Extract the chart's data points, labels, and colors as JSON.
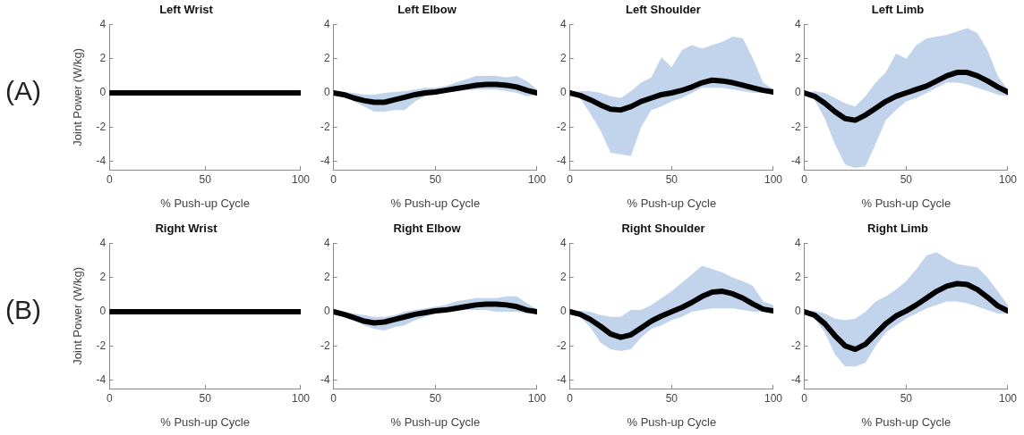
{
  "chart_data": [
    {
      "type": "line",
      "title": "Left Wrist",
      "xlabel": "% Push-up Cycle",
      "ylabel": "Joint Power (W/kg)",
      "annotations": [
        "(A)"
      ],
      "xlim": [
        0,
        100
      ],
      "xticks": [
        0,
        50,
        100
      ],
      "ylim": [
        -4.5,
        4
      ],
      "yticks": [
        -4,
        -2,
        0,
        2,
        4
      ],
      "grid": false,
      "legend": false,
      "marker": "none",
      "line_style": "solid",
      "x": [
        0,
        5,
        10,
        15,
        20,
        25,
        30,
        35,
        40,
        45,
        50,
        55,
        60,
        65,
        70,
        75,
        80,
        85,
        90,
        95,
        100
      ],
      "series": [
        {
          "color": "#000000",
          "values": [
            0,
            0,
            0,
            0,
            0,
            0,
            0,
            0,
            0,
            0,
            0,
            0,
            0,
            0,
            0,
            0,
            0,
            0,
            0,
            0,
            0
          ]
        }
      ]
    },
    {
      "type": "line",
      "title": "Left Elbow",
      "xlabel": "% Push-up Cycle",
      "xlim": [
        0,
        100
      ],
      "xticks": [
        0,
        50,
        100
      ],
      "ylim": [
        -4.5,
        4
      ],
      "yticks": [
        -4,
        -2,
        0,
        2,
        4
      ],
      "grid": false,
      "legend": false,
      "marker": "none",
      "line_style": "solid",
      "x": [
        0,
        5,
        10,
        15,
        20,
        25,
        30,
        35,
        40,
        45,
        50,
        55,
        60,
        65,
        70,
        75,
        80,
        85,
        90,
        95,
        100
      ],
      "series": [
        {
          "color": "#000000",
          "values": [
            0,
            -0.1,
            -0.3,
            -0.45,
            -0.55,
            -0.55,
            -0.4,
            -0.25,
            -0.1,
            0,
            0.05,
            0.15,
            0.25,
            0.35,
            0.45,
            0.5,
            0.5,
            0.45,
            0.35,
            0.15,
            0
          ],
          "lower": [
            0,
            -0.2,
            -0.5,
            -0.8,
            -1.1,
            -1.1,
            -1.0,
            -1.0,
            -0.5,
            -0.2,
            -0.1,
            0,
            0.1,
            0.15,
            0.2,
            0.2,
            0.2,
            0.1,
            0,
            -0.2,
            -0.1
          ],
          "upper": [
            0,
            0.05,
            0,
            -0.1,
            -0.1,
            0,
            0.05,
            0.1,
            0.2,
            0.3,
            0.3,
            0.4,
            0.6,
            0.8,
            1.0,
            1.0,
            1.0,
            0.9,
            1.0,
            0.7,
            0.2
          ]
        }
      ]
    },
    {
      "type": "line",
      "title": "Left Shoulder",
      "xlabel": "% Push-up Cycle",
      "xlim": [
        0,
        100
      ],
      "xticks": [
        0,
        50,
        100
      ],
      "ylim": [
        -4.5,
        4
      ],
      "yticks": [
        -4,
        -2,
        0,
        2,
        4
      ],
      "grid": false,
      "legend": false,
      "marker": "none",
      "line_style": "solid",
      "x": [
        0,
        5,
        10,
        15,
        20,
        25,
        30,
        35,
        40,
        45,
        50,
        55,
        60,
        65,
        70,
        75,
        80,
        85,
        90,
        95,
        100
      ],
      "series": [
        {
          "color": "#000000",
          "values": [
            0,
            -0.15,
            -0.4,
            -0.7,
            -0.95,
            -1.0,
            -0.8,
            -0.5,
            -0.3,
            -0.1,
            0,
            0.15,
            0.35,
            0.6,
            0.75,
            0.7,
            0.6,
            0.45,
            0.3,
            0.15,
            0.05
          ],
          "lower": [
            0,
            -0.3,
            -1.2,
            -2.2,
            -3.5,
            -3.6,
            -3.7,
            -2.0,
            -1.0,
            -0.8,
            -0.5,
            -0.3,
            0,
            0.3,
            0.3,
            0.3,
            0.2,
            0.1,
            0,
            0,
            0
          ],
          "upper": [
            0,
            0.1,
            0.1,
            0,
            -0.2,
            -0.3,
            0.1,
            0.6,
            0.9,
            2.1,
            1.5,
            2.5,
            2.8,
            2.6,
            2.8,
            3.0,
            3.3,
            3.2,
            2.0,
            0.6,
            0.2
          ]
        }
      ]
    },
    {
      "type": "line",
      "title": "Left Limb",
      "xlabel": "% Push-up Cycle",
      "xlim": [
        0,
        100
      ],
      "xticks": [
        0,
        50,
        100
      ],
      "ylim": [
        -4.5,
        4
      ],
      "yticks": [
        -4,
        -2,
        0,
        2,
        4
      ],
      "grid": false,
      "legend": false,
      "marker": "none",
      "line_style": "solid",
      "x": [
        0,
        5,
        10,
        15,
        20,
        25,
        30,
        35,
        40,
        45,
        50,
        55,
        60,
        65,
        70,
        75,
        80,
        85,
        90,
        95,
        100
      ],
      "series": [
        {
          "color": "#000000",
          "values": [
            0,
            -0.2,
            -0.6,
            -1.1,
            -1.5,
            -1.6,
            -1.3,
            -0.9,
            -0.5,
            -0.2,
            0,
            0.2,
            0.4,
            0.7,
            1.0,
            1.2,
            1.2,
            1.0,
            0.7,
            0.35,
            0.05
          ],
          "lower": [
            0,
            -0.4,
            -1.5,
            -3.0,
            -4.2,
            -4.4,
            -4.3,
            -3.0,
            -1.6,
            -1.0,
            -0.5,
            -0.3,
            0,
            0.3,
            0.6,
            0.6,
            0.5,
            0.3,
            0.1,
            -0.1,
            -0.2
          ],
          "upper": [
            0,
            0.1,
            0,
            -0.3,
            -0.6,
            -0.8,
            -0.2,
            0.6,
            1.2,
            2.3,
            2.0,
            2.8,
            3.2,
            3.3,
            3.4,
            3.6,
            3.8,
            3.5,
            2.5,
            1.0,
            0.2
          ]
        }
      ]
    },
    {
      "type": "line",
      "title": "Right Wrist",
      "xlabel": "% Push-up Cycle",
      "ylabel": "Joint Power (W/kg)",
      "annotations": [
        "(B)"
      ],
      "xlim": [
        0,
        100
      ],
      "xticks": [
        0,
        50,
        100
      ],
      "ylim": [
        -4.5,
        4
      ],
      "yticks": [
        -4,
        -2,
        0,
        2,
        4
      ],
      "grid": false,
      "legend": false,
      "marker": "none",
      "line_style": "solid",
      "x": [
        0,
        5,
        10,
        15,
        20,
        25,
        30,
        35,
        40,
        45,
        50,
        55,
        60,
        65,
        70,
        75,
        80,
        85,
        90,
        95,
        100
      ],
      "series": [
        {
          "color": "#000000",
          "values": [
            0,
            0,
            0,
            0,
            0,
            0,
            0,
            0,
            0,
            0,
            0,
            0,
            0,
            0,
            0,
            0,
            0,
            0,
            0,
            0,
            0
          ]
        }
      ]
    },
    {
      "type": "line",
      "title": "Right Elbow",
      "xlabel": "% Push-up Cycle",
      "xlim": [
        0,
        100
      ],
      "xticks": [
        0,
        50,
        100
      ],
      "ylim": [
        -4.5,
        4
      ],
      "yticks": [
        -4,
        -2,
        0,
        2,
        4
      ],
      "grid": false,
      "legend": false,
      "marker": "none",
      "line_style": "solid",
      "x": [
        0,
        5,
        10,
        15,
        20,
        25,
        30,
        35,
        40,
        45,
        50,
        55,
        60,
        65,
        70,
        75,
        80,
        85,
        90,
        95,
        100
      ],
      "series": [
        {
          "color": "#000000",
          "values": [
            0,
            -0.15,
            -0.35,
            -0.55,
            -0.65,
            -0.6,
            -0.45,
            -0.3,
            -0.15,
            -0.05,
            0.05,
            0.1,
            0.2,
            0.3,
            0.4,
            0.45,
            0.45,
            0.4,
            0.3,
            0.1,
            0
          ],
          "lower": [
            0,
            -0.2,
            -0.5,
            -0.8,
            -1.0,
            -1.1,
            -0.9,
            -0.8,
            -0.5,
            -0.3,
            -0.1,
            0,
            0.05,
            0.1,
            0.1,
            0.1,
            0,
            0,
            0,
            -0.1,
            -0.05
          ],
          "upper": [
            0.1,
            0,
            -0.1,
            -0.2,
            -0.3,
            -0.3,
            -0.2,
            0,
            0.1,
            0.2,
            0.3,
            0.4,
            0.6,
            0.7,
            0.8,
            0.8,
            0.8,
            0.9,
            0.9,
            0.5,
            0.15
          ]
        }
      ]
    },
    {
      "type": "line",
      "title": "Right Shoulder",
      "xlabel": "% Push-up Cycle",
      "xlim": [
        0,
        100
      ],
      "xticks": [
        0,
        50,
        100
      ],
      "ylim": [
        -4.5,
        4
      ],
      "yticks": [
        -4,
        -2,
        0,
        2,
        4
      ],
      "grid": false,
      "legend": false,
      "marker": "none",
      "line_style": "solid",
      "x": [
        0,
        5,
        10,
        15,
        20,
        25,
        30,
        35,
        40,
        45,
        50,
        55,
        60,
        65,
        70,
        75,
        80,
        85,
        90,
        95,
        100
      ],
      "series": [
        {
          "color": "#000000",
          "values": [
            0,
            -0.15,
            -0.45,
            -0.85,
            -1.3,
            -1.5,
            -1.35,
            -0.95,
            -0.55,
            -0.25,
            0,
            0.25,
            0.55,
            0.9,
            1.15,
            1.2,
            1.05,
            0.8,
            0.45,
            0.15,
            0.05
          ],
          "lower": [
            0,
            -0.3,
            -0.9,
            -1.8,
            -2.2,
            -2.3,
            -2.2,
            -1.5,
            -1.0,
            -0.8,
            -0.5,
            -0.3,
            0,
            0.1,
            0.2,
            0.2,
            0.2,
            0.1,
            0,
            0,
            0
          ],
          "upper": [
            0,
            0.05,
            0,
            -0.2,
            -0.3,
            -0.3,
            0.1,
            0.1,
            0.4,
            0.8,
            1.2,
            1.7,
            2.2,
            2.7,
            2.5,
            2.3,
            2.0,
            1.8,
            1.5,
            0.6,
            0.4
          ]
        }
      ]
    },
    {
      "type": "line",
      "title": "Right Limb",
      "xlabel": "% Push-up Cycle",
      "xlim": [
        0,
        100
      ],
      "xticks": [
        0,
        50,
        100
      ],
      "ylim": [
        -4.5,
        4
      ],
      "yticks": [
        -4,
        -2,
        0,
        2,
        4
      ],
      "grid": false,
      "legend": false,
      "marker": "none",
      "line_style": "solid",
      "x": [
        0,
        5,
        10,
        15,
        20,
        25,
        30,
        35,
        40,
        45,
        50,
        55,
        60,
        65,
        70,
        75,
        80,
        85,
        90,
        95,
        100
      ],
      "series": [
        {
          "color": "#000000",
          "values": [
            0,
            -0.2,
            -0.7,
            -1.4,
            -2.0,
            -2.2,
            -1.9,
            -1.3,
            -0.7,
            -0.25,
            0.05,
            0.4,
            0.8,
            1.2,
            1.5,
            1.65,
            1.6,
            1.3,
            0.85,
            0.35,
            0.05
          ],
          "lower": [
            0,
            -0.4,
            -1.2,
            -2.5,
            -3.2,
            -3.2,
            -3.0,
            -2.0,
            -1.2,
            -0.8,
            -0.4,
            -0.1,
            0.2,
            0.4,
            0.6,
            0.6,
            0.5,
            0.3,
            0.1,
            -0.1,
            -0.1
          ],
          "upper": [
            0,
            0.05,
            -0.1,
            -0.4,
            -0.5,
            -0.4,
            0,
            0.6,
            0.9,
            1.3,
            1.8,
            2.5,
            3.3,
            3.5,
            3.1,
            2.8,
            2.7,
            2.6,
            2.0,
            1.2,
            0.4
          ]
        }
      ]
    }
  ]
}
